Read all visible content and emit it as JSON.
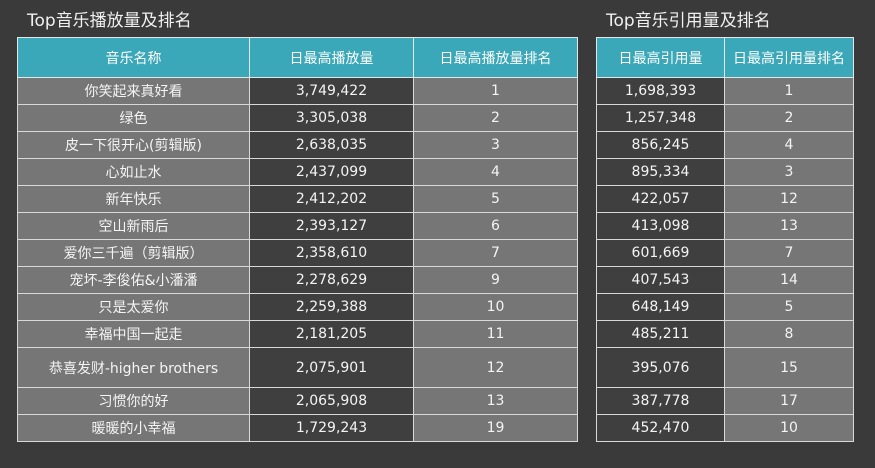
{
  "titles": {
    "left": "Top音乐播放量及排名",
    "right": "Top音乐引用量及排名"
  },
  "headers": {
    "name": "音乐名称",
    "max_play": "日最高播放量",
    "play_rank": "日最高播放量排名",
    "max_cite": "日最高引用量",
    "cite_rank": "日最高引用量排名"
  },
  "colors": {
    "header_bg": "#3aa8b8",
    "page_bg": "#3a3a3a",
    "light_cell": "#767676",
    "dark_cell": "#3f3f3f"
  },
  "chart_data": {
    "type": "table",
    "columns": [
      "音乐名称",
      "日最高播放量",
      "日最高播放量排名",
      "日最高引用量",
      "日最高引用量排名"
    ],
    "rows": [
      {
        "name": "你笑起来真好看",
        "play": "3,749,422",
        "play_rank": "1",
        "cite": "1,698,393",
        "cite_rank": "1"
      },
      {
        "name": "绿色",
        "play": "3,305,038",
        "play_rank": "2",
        "cite": "1,257,348",
        "cite_rank": "2"
      },
      {
        "name": "皮一下很开心(剪辑版)",
        "play": "2,638,035",
        "play_rank": "3",
        "cite": "856,245",
        "cite_rank": "4"
      },
      {
        "name": "心如止水",
        "play": "2,437,099",
        "play_rank": "4",
        "cite": "895,334",
        "cite_rank": "3"
      },
      {
        "name": "新年快乐",
        "play": "2,412,202",
        "play_rank": "5",
        "cite": "422,057",
        "cite_rank": "12"
      },
      {
        "name": "空山新雨后",
        "play": "2,393,127",
        "play_rank": "6",
        "cite": "413,098",
        "cite_rank": "13"
      },
      {
        "name": "爱你三千遍（剪辑版）",
        "play": "2,358,610",
        "play_rank": "7",
        "cite": "601,669",
        "cite_rank": "7"
      },
      {
        "name": "宠坏-李俊佑&小潘潘",
        "play": "2,278,629",
        "play_rank": "9",
        "cite": "407,543",
        "cite_rank": "14"
      },
      {
        "name": "只是太爱你",
        "play": "2,259,388",
        "play_rank": "10",
        "cite": "648,149",
        "cite_rank": "5"
      },
      {
        "name": "幸福中国一起走",
        "play": "2,181,205",
        "play_rank": "11",
        "cite": "485,211",
        "cite_rank": "8"
      },
      {
        "name": "恭喜发财-higher brothers",
        "play": "2,075,901",
        "play_rank": "12",
        "cite": "395,076",
        "cite_rank": "15"
      },
      {
        "name": "习惯你的好",
        "play": "2,065,908",
        "play_rank": "13",
        "cite": "387,778",
        "cite_rank": "17"
      },
      {
        "name": "暖暖的小幸福",
        "play": "1,729,243",
        "play_rank": "19",
        "cite": "452,470",
        "cite_rank": "10"
      }
    ]
  }
}
